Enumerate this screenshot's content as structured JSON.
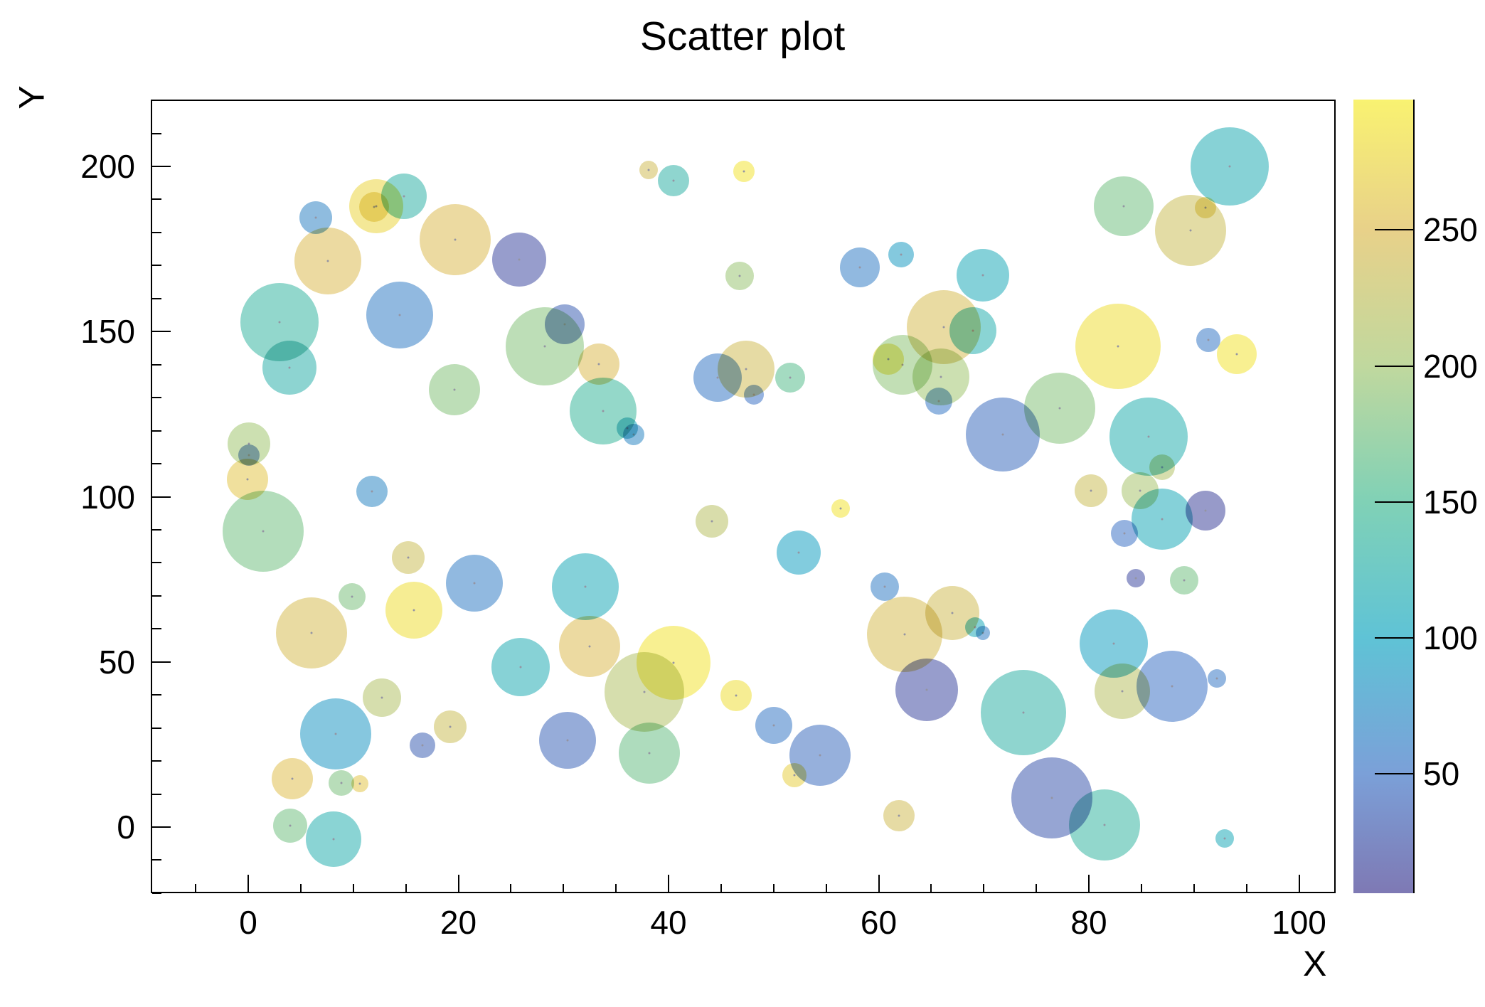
{
  "title": "Scatter plot",
  "colors": {
    "background": "#ffffff",
    "frame_line": "#000000",
    "text": "#000000"
  },
  "chart_data": {
    "type": "scatter",
    "title": "Scatter plot",
    "xlabel": "X",
    "ylabel": "Y",
    "xlim": [
      -9.3,
      103.5
    ],
    "ylim": [
      -20,
      220
    ],
    "x_major_ticks": [
      0,
      20,
      40,
      60,
      80,
      100
    ],
    "x_minor_step": 5,
    "y_major_ticks": [
      0,
      50,
      100,
      150,
      200
    ],
    "y_minor_step": 10,
    "grid": false,
    "legend": "none",
    "colorbar": {
      "min": 6,
      "max": 298,
      "ticks": [
        50,
        100,
        150,
        200,
        250
      ],
      "palette": [
        [
          6,
          "#7e79b4"
        ],
        [
          50,
          "#7ba0d8"
        ],
        [
          100,
          "#5fc3d6"
        ],
        [
          150,
          "#80d1b6"
        ],
        [
          200,
          "#c0d89e"
        ],
        [
          250,
          "#e8d189"
        ],
        [
          298,
          "#f9f271"
        ]
      ]
    },
    "points": [
      {
        "x": 6.4,
        "y": 184.5,
        "z": 65,
        "r": 23
      },
      {
        "x": 12.2,
        "y": 188.0,
        "z": 275,
        "r": 38
      },
      {
        "x": 12.0,
        "y": 187.8,
        "z": 265,
        "r": 21
      },
      {
        "x": 14.8,
        "y": 191.0,
        "z": 130,
        "r": 32
      },
      {
        "x": 7.6,
        "y": 171.4,
        "z": 250,
        "r": 47
      },
      {
        "x": 19.7,
        "y": 177.9,
        "z": 250,
        "r": 50
      },
      {
        "x": 3.0,
        "y": 152.9,
        "z": 135,
        "r": 55
      },
      {
        "x": 14.4,
        "y": 155.1,
        "z": 60,
        "r": 47
      },
      {
        "x": 3.9,
        "y": 139.1,
        "z": 125,
        "r": 38
      },
      {
        "x": 38.1,
        "y": 199.0,
        "z": 240,
        "r": 13
      },
      {
        "x": 40.5,
        "y": 195.6,
        "z": 130,
        "r": 22
      },
      {
        "x": 47.2,
        "y": 198.4,
        "z": 290,
        "r": 15
      },
      {
        "x": 25.8,
        "y": 171.8,
        "z": 20,
        "r": 38
      },
      {
        "x": 28.2,
        "y": 145.6,
        "z": 185,
        "r": 55
      },
      {
        "x": 30.1,
        "y": 152.1,
        "z": 35,
        "r": 28
      },
      {
        "x": 33.4,
        "y": 140.2,
        "z": 250,
        "r": 29
      },
      {
        "x": 46.8,
        "y": 166.9,
        "z": 195,
        "r": 20
      },
      {
        "x": 58.2,
        "y": 169.5,
        "z": 60,
        "r": 28
      },
      {
        "x": 62.1,
        "y": 173.4,
        "z": 90,
        "r": 18
      },
      {
        "x": 69.9,
        "y": 167.1,
        "z": 110,
        "r": 37
      },
      {
        "x": 66.2,
        "y": 151.4,
        "z": 245,
        "r": 52
      },
      {
        "x": 69.0,
        "y": 150.3,
        "z": 120,
        "r": 33
      },
      {
        "x": 60.9,
        "y": 141.7,
        "z": 280,
        "r": 22
      },
      {
        "x": 62.3,
        "y": 140.0,
        "z": 190,
        "r": 42
      },
      {
        "x": 65.9,
        "y": 136.3,
        "z": 200,
        "r": 40
      },
      {
        "x": 93.4,
        "y": 199.9,
        "z": 115,
        "r": 55
      },
      {
        "x": 83.3,
        "y": 188.0,
        "z": 175,
        "r": 42
      },
      {
        "x": 89.7,
        "y": 180.7,
        "z": 235,
        "r": 50
      },
      {
        "x": 91.1,
        "y": 187.6,
        "z": 265,
        "r": 15
      },
      {
        "x": 82.8,
        "y": 145.6,
        "z": 285,
        "r": 60
      },
      {
        "x": 91.4,
        "y": 147.5,
        "z": 55,
        "r": 17
      },
      {
        "x": 94.1,
        "y": 143.2,
        "z": 290,
        "r": 28
      },
      {
        "x": 0.1,
        "y": 116.1,
        "z": 200,
        "r": 30
      },
      {
        "x": 0.1,
        "y": 112.6,
        "z": 45,
        "r": 15
      },
      {
        "x": -0.1,
        "y": 105.3,
        "z": 260,
        "r": 29
      },
      {
        "x": 1.4,
        "y": 89.6,
        "z": 175,
        "r": 57
      },
      {
        "x": 11.8,
        "y": 101.7,
        "z": 70,
        "r": 22
      },
      {
        "x": 15.2,
        "y": 81.6,
        "z": 235,
        "r": 23
      },
      {
        "x": 9.9,
        "y": 69.8,
        "z": 180,
        "r": 19
      },
      {
        "x": 15.8,
        "y": 65.7,
        "z": 285,
        "r": 40
      },
      {
        "x": 19.6,
        "y": 132.5,
        "z": 185,
        "r": 36
      },
      {
        "x": 33.8,
        "y": 126.0,
        "z": 140,
        "r": 47
      },
      {
        "x": 36.1,
        "y": 120.8,
        "z": 105,
        "r": 15
      },
      {
        "x": 36.7,
        "y": 118.9,
        "z": 70,
        "r": 15
      },
      {
        "x": 44.7,
        "y": 136.1,
        "z": 55,
        "r": 34
      },
      {
        "x": 44.1,
        "y": 92.6,
        "z": 220,
        "r": 23
      },
      {
        "x": 21.5,
        "y": 73.9,
        "z": 60,
        "r": 40
      },
      {
        "x": 32.1,
        "y": 72.8,
        "z": 110,
        "r": 47
      },
      {
        "x": 47.4,
        "y": 138.7,
        "z": 240,
        "r": 40
      },
      {
        "x": 48.1,
        "y": 130.9,
        "z": 50,
        "r": 14
      },
      {
        "x": 51.6,
        "y": 136.1,
        "z": 160,
        "r": 21
      },
      {
        "x": 71.8,
        "y": 118.9,
        "z": 45,
        "r": 52
      },
      {
        "x": 56.4,
        "y": 96.5,
        "z": 290,
        "r": 13
      },
      {
        "x": 52.4,
        "y": 83.2,
        "z": 95,
        "r": 31
      },
      {
        "x": 60.6,
        "y": 72.8,
        "z": 60,
        "r": 20
      },
      {
        "x": 67.0,
        "y": 64.8,
        "z": 240,
        "r": 38
      },
      {
        "x": 65.7,
        "y": 129.0,
        "z": 55,
        "r": 19
      },
      {
        "x": 77.2,
        "y": 126.9,
        "z": 185,
        "r": 50
      },
      {
        "x": 85.7,
        "y": 118.1,
        "z": 120,
        "r": 55
      },
      {
        "x": 87.0,
        "y": 109.0,
        "z": 215,
        "r": 18
      },
      {
        "x": 80.2,
        "y": 101.9,
        "z": 235,
        "r": 23
      },
      {
        "x": 84.9,
        "y": 101.9,
        "z": 205,
        "r": 26
      },
      {
        "x": 87.0,
        "y": 93.3,
        "z": 110,
        "r": 43
      },
      {
        "x": 91.1,
        "y": 95.9,
        "z": 15,
        "r": 28
      },
      {
        "x": 83.4,
        "y": 89.0,
        "z": 50,
        "r": 19
      },
      {
        "x": 84.5,
        "y": 75.4,
        "z": 20,
        "r": 13
      },
      {
        "x": 89.1,
        "y": 74.7,
        "z": 175,
        "r": 20
      },
      {
        "x": 6.0,
        "y": 58.8,
        "z": 245,
        "r": 50
      },
      {
        "x": 12.7,
        "y": 39.2,
        "z": 215,
        "r": 27
      },
      {
        "x": 8.3,
        "y": 28.2,
        "z": 85,
        "r": 50
      },
      {
        "x": 16.6,
        "y": 24.8,
        "z": 35,
        "r": 18
      },
      {
        "x": 4.2,
        "y": 14.6,
        "z": 255,
        "r": 29
      },
      {
        "x": 8.9,
        "y": 13.3,
        "z": 180,
        "r": 18
      },
      {
        "x": 10.6,
        "y": 13.2,
        "z": 260,
        "r": 12
      },
      {
        "x": 4.0,
        "y": 0.4,
        "z": 175,
        "r": 24
      },
      {
        "x": 8.1,
        "y": -3.6,
        "z": 120,
        "r": 39
      },
      {
        "x": 25.9,
        "y": 48.5,
        "z": 115,
        "r": 41
      },
      {
        "x": 32.5,
        "y": 54.7,
        "z": 250,
        "r": 43
      },
      {
        "x": 37.7,
        "y": 40.9,
        "z": 215,
        "r": 56
      },
      {
        "x": 40.5,
        "y": 49.8,
        "z": 290,
        "r": 52
      },
      {
        "x": 46.4,
        "y": 39.8,
        "z": 285,
        "r": 22
      },
      {
        "x": 19.2,
        "y": 30.4,
        "z": 235,
        "r": 23
      },
      {
        "x": 30.4,
        "y": 26.3,
        "z": 40,
        "r": 40
      },
      {
        "x": 38.2,
        "y": 22.4,
        "z": 170,
        "r": 43
      },
      {
        "x": 62.5,
        "y": 58.4,
        "z": 245,
        "r": 53
      },
      {
        "x": 64.6,
        "y": 41.6,
        "z": 20,
        "r": 44
      },
      {
        "x": 50.0,
        "y": 30.8,
        "z": 55,
        "r": 26
      },
      {
        "x": 54.4,
        "y": 21.8,
        "z": 45,
        "r": 43
      },
      {
        "x": 52.0,
        "y": 15.7,
        "z": 270,
        "r": 17
      },
      {
        "x": 73.8,
        "y": 34.7,
        "z": 130,
        "r": 60
      },
      {
        "x": 61.9,
        "y": 3.4,
        "z": 240,
        "r": 22
      },
      {
        "x": 69.2,
        "y": 60.5,
        "z": 110,
        "r": 14
      },
      {
        "x": 69.9,
        "y": 58.8,
        "z": 60,
        "r": 10
      },
      {
        "x": 82.4,
        "y": 55.6,
        "z": 95,
        "r": 48
      },
      {
        "x": 83.2,
        "y": 41.1,
        "z": 220,
        "r": 39
      },
      {
        "x": 87.9,
        "y": 42.7,
        "z": 50,
        "r": 50
      },
      {
        "x": 92.2,
        "y": 45.0,
        "z": 55,
        "r": 13
      },
      {
        "x": 76.5,
        "y": 8.8,
        "z": 30,
        "r": 57
      },
      {
        "x": 81.5,
        "y": 0.6,
        "z": 135,
        "r": 50
      },
      {
        "x": 92.9,
        "y": -3.4,
        "z": 110,
        "r": 13
      }
    ]
  }
}
